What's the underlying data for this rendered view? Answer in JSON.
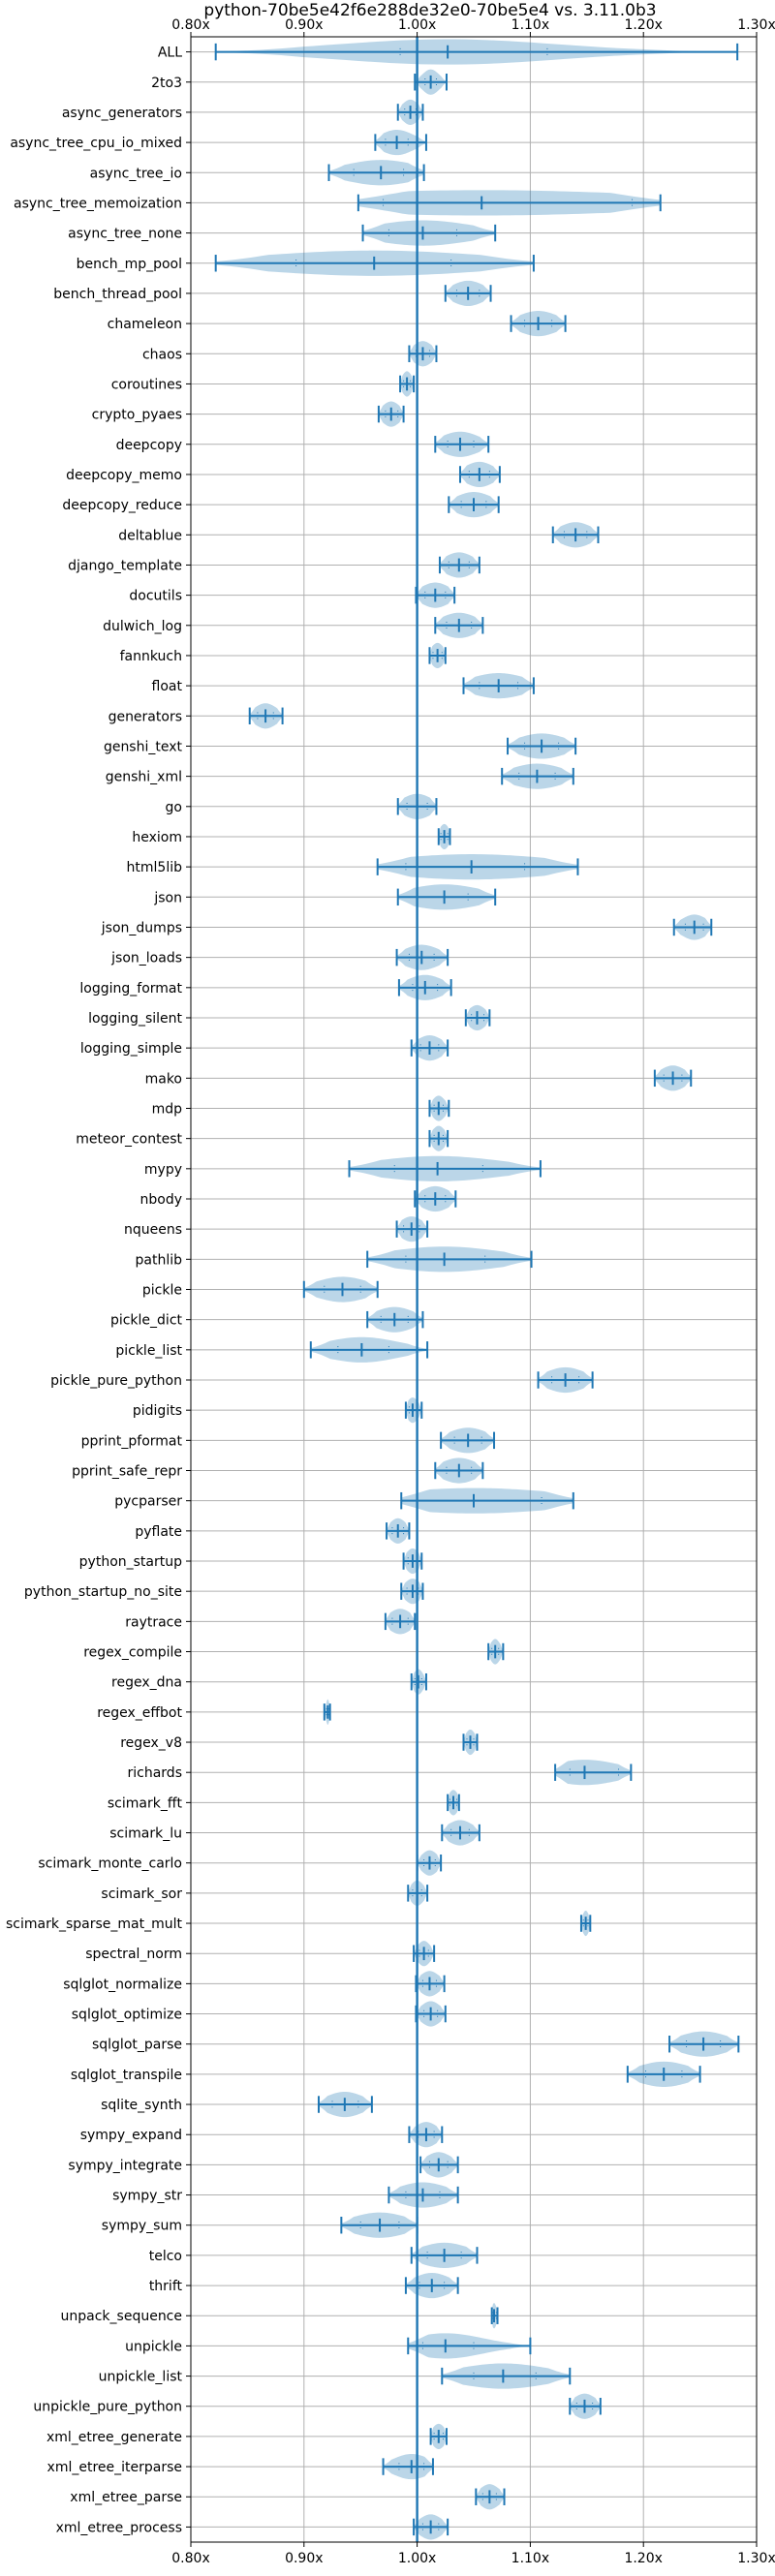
{
  "chart_data": {
    "type": "violin",
    "title": "python-70be5e42f6e288de32e0-70be5e4 vs. 3.11.0b3",
    "xlabel": "",
    "ylabel": "",
    "xlim": [
      0.8,
      1.3
    ],
    "xticks": [
      "0.80x",
      "0.90x",
      "1.00x",
      "1.10x",
      "1.20x",
      "1.30x"
    ],
    "xtick_values": [
      0.8,
      0.9,
      1.0,
      1.1,
      1.2,
      1.3
    ],
    "reference_line": 1.0,
    "grid": true,
    "series": [
      {
        "name": "ALL",
        "min": 0.822,
        "max": 1.283,
        "median": 1.027,
        "q1": 0.985,
        "q3": 1.115
      },
      {
        "name": "2to3",
        "min": 0.998,
        "max": 1.026,
        "median": 1.012,
        "q1": 1.007,
        "q3": 1.017
      },
      {
        "name": "async_generators",
        "min": 0.983,
        "max": 1.005,
        "median": 0.994,
        "q1": 0.989,
        "q3": 0.999
      },
      {
        "name": "async_tree_cpu_io_mixed",
        "min": 0.963,
        "max": 1.008,
        "median": 0.982,
        "q1": 0.972,
        "q3": 0.992
      },
      {
        "name": "async_tree_io",
        "min": 0.922,
        "max": 1.006,
        "median": 0.968,
        "q1": 0.944,
        "q3": 0.988
      },
      {
        "name": "async_tree_memoization",
        "min": 0.948,
        "max": 1.215,
        "median": 1.057,
        "q1": 0.97,
        "q3": 1.19
      },
      {
        "name": "async_tree_none",
        "min": 0.952,
        "max": 1.069,
        "median": 1.005,
        "q1": 0.975,
        "q3": 1.035
      },
      {
        "name": "bench_mp_pool",
        "min": 0.822,
        "max": 1.103,
        "median": 0.962,
        "q1": 0.893,
        "q3": 1.03
      },
      {
        "name": "bench_thread_pool",
        "min": 1.025,
        "max": 1.065,
        "median": 1.045,
        "q1": 1.035,
        "q3": 1.055
      },
      {
        "name": "chameleon",
        "min": 1.083,
        "max": 1.131,
        "median": 1.107,
        "q1": 1.095,
        "q3": 1.119
      },
      {
        "name": "chaos",
        "min": 0.993,
        "max": 1.017,
        "median": 1.005,
        "q1": 0.999,
        "q3": 1.011
      },
      {
        "name": "coroutines",
        "min": 0.985,
        "max": 0.997,
        "median": 0.991,
        "q1": 0.988,
        "q3": 0.994
      },
      {
        "name": "crypto_pyaes",
        "min": 0.966,
        "max": 0.988,
        "median": 0.977,
        "q1": 0.972,
        "q3": 0.983
      },
      {
        "name": "deepcopy",
        "min": 1.016,
        "max": 1.063,
        "median": 1.038,
        "q1": 1.027,
        "q3": 1.05
      },
      {
        "name": "deepcopy_memo",
        "min": 1.038,
        "max": 1.073,
        "median": 1.055,
        "q1": 1.046,
        "q3": 1.064
      },
      {
        "name": "deepcopy_reduce",
        "min": 1.028,
        "max": 1.072,
        "median": 1.05,
        "q1": 1.039,
        "q3": 1.061
      },
      {
        "name": "deltablue",
        "min": 1.12,
        "max": 1.16,
        "median": 1.14,
        "q1": 1.13,
        "q3": 1.15
      },
      {
        "name": "django_template",
        "min": 1.02,
        "max": 1.055,
        "median": 1.037,
        "q1": 1.028,
        "q3": 1.046
      },
      {
        "name": "docutils",
        "min": 0.999,
        "max": 1.033,
        "median": 1.016,
        "q1": 1.007,
        "q3": 1.025
      },
      {
        "name": "dulwich_log",
        "min": 1.016,
        "max": 1.058,
        "median": 1.037,
        "q1": 1.026,
        "q3": 1.048
      },
      {
        "name": "fannkuch",
        "min": 1.011,
        "max": 1.025,
        "median": 1.018,
        "q1": 1.014,
        "q3": 1.022
      },
      {
        "name": "float",
        "min": 1.041,
        "max": 1.103,
        "median": 1.072,
        "q1": 1.055,
        "q3": 1.089
      },
      {
        "name": "generators",
        "min": 0.852,
        "max": 0.881,
        "median": 0.866,
        "q1": 0.859,
        "q3": 0.873
      },
      {
        "name": "genshi_text",
        "min": 1.08,
        "max": 1.14,
        "median": 1.11,
        "q1": 1.095,
        "q3": 1.125
      },
      {
        "name": "genshi_xml",
        "min": 1.075,
        "max": 1.138,
        "median": 1.106,
        "q1": 1.09,
        "q3": 1.122
      },
      {
        "name": "go",
        "min": 0.983,
        "max": 1.017,
        "median": 1.0,
        "q1": 0.991,
        "q3": 1.009
      },
      {
        "name": "hexiom",
        "min": 1.019,
        "max": 1.029,
        "median": 1.024,
        "q1": 1.021,
        "q3": 1.027
      },
      {
        "name": "html5lib",
        "min": 0.965,
        "max": 1.142,
        "median": 1.048,
        "q1": 0.99,
        "q3": 1.095
      },
      {
        "name": "json",
        "min": 0.983,
        "max": 1.069,
        "median": 1.024,
        "q1": 1.0,
        "q3": 1.045
      },
      {
        "name": "json_dumps",
        "min": 1.227,
        "max": 1.26,
        "median": 1.245,
        "q1": 1.237,
        "q3": 1.253
      },
      {
        "name": "json_loads",
        "min": 0.982,
        "max": 1.027,
        "median": 1.004,
        "q1": 0.993,
        "q3": 1.015
      },
      {
        "name": "logging_format",
        "min": 0.984,
        "max": 1.03,
        "median": 1.007,
        "q1": 0.996,
        "q3": 1.018
      },
      {
        "name": "logging_silent",
        "min": 1.043,
        "max": 1.064,
        "median": 1.053,
        "q1": 1.048,
        "q3": 1.059
      },
      {
        "name": "logging_simple",
        "min": 0.995,
        "max": 1.027,
        "median": 1.011,
        "q1": 1.003,
        "q3": 1.019
      },
      {
        "name": "mako",
        "min": 1.21,
        "max": 1.242,
        "median": 1.226,
        "q1": 1.218,
        "q3": 1.234
      },
      {
        "name": "mdp",
        "min": 1.011,
        "max": 1.028,
        "median": 1.019,
        "q1": 1.015,
        "q3": 1.023
      },
      {
        "name": "meteor_contest",
        "min": 1.011,
        "max": 1.027,
        "median": 1.019,
        "q1": 1.015,
        "q3": 1.023
      },
      {
        "name": "mypy",
        "min": 0.94,
        "max": 1.109,
        "median": 1.018,
        "q1": 0.98,
        "q3": 1.058
      },
      {
        "name": "nbody",
        "min": 0.998,
        "max": 1.034,
        "median": 1.016,
        "q1": 1.007,
        "q3": 1.025
      },
      {
        "name": "nqueens",
        "min": 0.982,
        "max": 1.009,
        "median": 0.995,
        "q1": 0.988,
        "q3": 1.002
      },
      {
        "name": "pathlib",
        "min": 0.956,
        "max": 1.101,
        "median": 1.024,
        "q1": 0.99,
        "q3": 1.06
      },
      {
        "name": "pickle",
        "min": 0.9,
        "max": 0.965,
        "median": 0.934,
        "q1": 0.918,
        "q3": 0.95
      },
      {
        "name": "pickle_dict",
        "min": 0.956,
        "max": 1.005,
        "median": 0.98,
        "q1": 0.968,
        "q3": 0.992
      },
      {
        "name": "pickle_list",
        "min": 0.906,
        "max": 1.009,
        "median": 0.951,
        "q1": 0.93,
        "q3": 0.975
      },
      {
        "name": "pickle_pure_python",
        "min": 1.107,
        "max": 1.155,
        "median": 1.131,
        "q1": 1.119,
        "q3": 1.143
      },
      {
        "name": "pidigits",
        "min": 0.99,
        "max": 1.004,
        "median": 0.996,
        "q1": 0.993,
        "q3": 1.0
      },
      {
        "name": "pprint_pformat",
        "min": 1.021,
        "max": 1.068,
        "median": 1.045,
        "q1": 1.033,
        "q3": 1.057
      },
      {
        "name": "pprint_safe_repr",
        "min": 1.016,
        "max": 1.058,
        "median": 1.037,
        "q1": 1.026,
        "q3": 1.048
      },
      {
        "name": "pycparser",
        "min": 0.986,
        "max": 1.138,
        "median": 1.05,
        "q1": 1.0,
        "q3": 1.11
      },
      {
        "name": "pyflate",
        "min": 0.973,
        "max": 0.993,
        "median": 0.983,
        "q1": 0.978,
        "q3": 0.988
      },
      {
        "name": "python_startup",
        "min": 0.988,
        "max": 1.004,
        "median": 0.996,
        "q1": 0.992,
        "q3": 1.0
      },
      {
        "name": "python_startup_no_site",
        "min": 0.986,
        "max": 1.005,
        "median": 0.996,
        "q1": 0.991,
        "q3": 1.001
      },
      {
        "name": "raytrace",
        "min": 0.972,
        "max": 0.998,
        "median": 0.985,
        "q1": 0.978,
        "q3": 0.992
      },
      {
        "name": "regex_compile",
        "min": 1.063,
        "max": 1.076,
        "median": 1.069,
        "q1": 1.066,
        "q3": 1.072
      },
      {
        "name": "regex_dna",
        "min": 0.995,
        "max": 1.008,
        "median": 1.001,
        "q1": 0.998,
        "q3": 1.004
      },
      {
        "name": "regex_effbot",
        "min": 0.918,
        "max": 0.923,
        "median": 0.921,
        "q1": 0.92,
        "q3": 0.922
      },
      {
        "name": "regex_v8",
        "min": 1.041,
        "max": 1.053,
        "median": 1.047,
        "q1": 1.044,
        "q3": 1.05
      },
      {
        "name": "richards",
        "min": 1.122,
        "max": 1.189,
        "median": 1.148,
        "q1": 1.135,
        "q3": 1.178
      },
      {
        "name": "scimark_fft",
        "min": 1.027,
        "max": 1.037,
        "median": 1.032,
        "q1": 1.029,
        "q3": 1.035
      },
      {
        "name": "scimark_lu",
        "min": 1.022,
        "max": 1.055,
        "median": 1.038,
        "q1": 1.03,
        "q3": 1.046
      },
      {
        "name": "scimark_monte_carlo",
        "min": 1.0,
        "max": 1.021,
        "median": 1.011,
        "q1": 1.006,
        "q3": 1.016
      },
      {
        "name": "scimark_sor",
        "min": 0.992,
        "max": 1.009,
        "median": 1.0,
        "q1": 0.996,
        "q3": 1.004
      },
      {
        "name": "scimark_sparse_mat_mult",
        "min": 1.145,
        "max": 1.153,
        "median": 1.149,
        "q1": 1.147,
        "q3": 1.151
      },
      {
        "name": "spectral_norm",
        "min": 0.997,
        "max": 1.015,
        "median": 1.006,
        "q1": 1.002,
        "q3": 1.01
      },
      {
        "name": "sqlglot_normalize",
        "min": 0.999,
        "max": 1.024,
        "median": 1.011,
        "q1": 1.005,
        "q3": 1.017
      },
      {
        "name": "sqlglot_optimize",
        "min": 0.999,
        "max": 1.025,
        "median": 1.012,
        "q1": 1.006,
        "q3": 1.018
      },
      {
        "name": "sqlglot_parse",
        "min": 1.223,
        "max": 1.284,
        "median": 1.253,
        "q1": 1.238,
        "q3": 1.268
      },
      {
        "name": "sqlglot_transpile",
        "min": 1.186,
        "max": 1.25,
        "median": 1.218,
        "q1": 1.202,
        "q3": 1.234
      },
      {
        "name": "sqlite_synth",
        "min": 0.913,
        "max": 0.96,
        "median": 0.936,
        "q1": 0.925,
        "q3": 0.948
      },
      {
        "name": "sympy_expand",
        "min": 0.993,
        "max": 1.022,
        "median": 1.008,
        "q1": 1.001,
        "q3": 1.015
      },
      {
        "name": "sympy_integrate",
        "min": 1.003,
        "max": 1.036,
        "median": 1.019,
        "q1": 1.011,
        "q3": 1.027
      },
      {
        "name": "sympy_str",
        "min": 0.975,
        "max": 1.036,
        "median": 1.005,
        "q1": 0.99,
        "q3": 1.02
      },
      {
        "name": "sympy_sum",
        "min": 0.933,
        "max": 1.0,
        "median": 0.967,
        "q1": 0.95,
        "q3": 0.984
      },
      {
        "name": "telco",
        "min": 0.995,
        "max": 1.053,
        "median": 1.024,
        "q1": 1.009,
        "q3": 1.039
      },
      {
        "name": "thrift",
        "min": 0.99,
        "max": 1.036,
        "median": 1.013,
        "q1": 1.002,
        "q3": 1.024
      },
      {
        "name": "unpack_sequence",
        "min": 1.066,
        "max": 1.071,
        "median": 1.068,
        "q1": 1.067,
        "q3": 1.07
      },
      {
        "name": "unpickle",
        "min": 0.992,
        "max": 1.1,
        "median": 1.025,
        "q1": 1.005,
        "q3": 1.05
      },
      {
        "name": "unpickle_list",
        "min": 1.022,
        "max": 1.135,
        "median": 1.076,
        "q1": 1.05,
        "q3": 1.105
      },
      {
        "name": "unpickle_pure_python",
        "min": 1.135,
        "max": 1.162,
        "median": 1.148,
        "q1": 1.141,
        "q3": 1.155
      },
      {
        "name": "xml_etree_generate",
        "min": 1.012,
        "max": 1.026,
        "median": 1.019,
        "q1": 1.015,
        "q3": 1.023
      },
      {
        "name": "xml_etree_iterparse",
        "min": 0.97,
        "max": 1.014,
        "median": 0.995,
        "q1": 0.984,
        "q3": 1.006
      },
      {
        "name": "xml_etree_parse",
        "min": 1.052,
        "max": 1.077,
        "median": 1.064,
        "q1": 1.058,
        "q3": 1.07
      },
      {
        "name": "xml_etree_process",
        "min": 0.997,
        "max": 1.027,
        "median": 1.012,
        "q1": 1.005,
        "q3": 1.019
      }
    ]
  },
  "colors": {
    "series": "#1f77b4",
    "grid": "#b0b0b0",
    "axes": "#000000"
  }
}
